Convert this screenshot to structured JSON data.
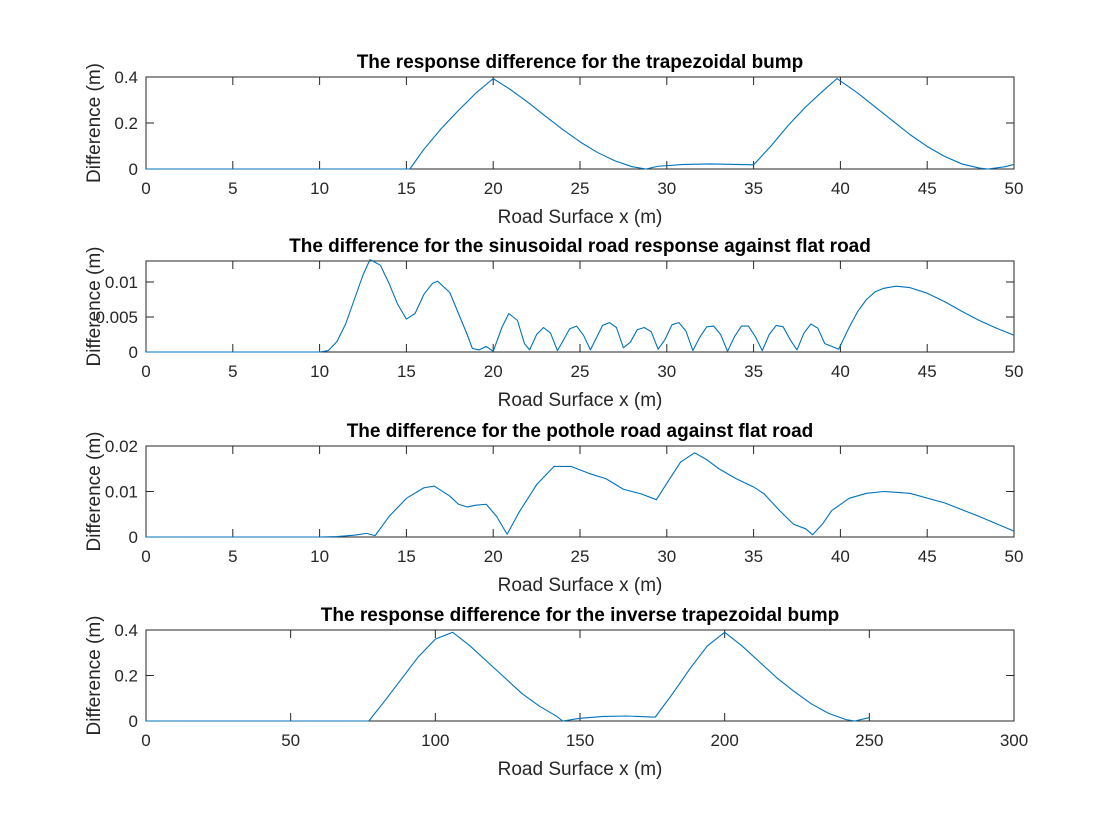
{
  "figure": {
    "background": "#ffffff",
    "line_color": "#0072bd"
  },
  "chart_data": [
    {
      "type": "line",
      "title": "The response difference for the trapezoidal bump",
      "xlabel": "Road Surface x (m)",
      "ylabel": "Difference (m)",
      "xlim": [
        0,
        50
      ],
      "ylim": [
        0,
        0.4
      ],
      "xticks": [
        "0",
        "5",
        "10",
        "15",
        "20",
        "25",
        "30",
        "35",
        "40",
        "45",
        "50"
      ],
      "xtick_values": [
        0,
        5,
        10,
        15,
        20,
        25,
        30,
        35,
        40,
        45,
        50
      ],
      "yticks": [
        "0",
        "0.2",
        "0.4"
      ],
      "ytick_values": [
        0,
        0.2,
        0.4
      ],
      "grid": false,
      "x": [
        0,
        15.2,
        16,
        17,
        18,
        19,
        20,
        21,
        22,
        23,
        24,
        25,
        26,
        27,
        28,
        28.8,
        29.5,
        31,
        32.5,
        34,
        35,
        36,
        37,
        38,
        39,
        39.8,
        41,
        42,
        43,
        44,
        45,
        46,
        47,
        48,
        48.5,
        49.5,
        50
      ],
      "y": [
        0,
        0,
        0.085,
        0.175,
        0.255,
        0.33,
        0.393,
        0.345,
        0.29,
        0.23,
        0.172,
        0.118,
        0.072,
        0.036,
        0.01,
        0.0,
        0.012,
        0.02,
        0.022,
        0.02,
        0.018,
        0.1,
        0.19,
        0.27,
        0.34,
        0.393,
        0.33,
        0.27,
        0.21,
        0.15,
        0.098,
        0.055,
        0.022,
        0.004,
        0.0,
        0.01,
        0.02
      ]
    },
    {
      "type": "line",
      "title": "The difference for the sinusoidal road response against flat road",
      "xlabel": "Road Surface x (m)",
      "ylabel": "Difference (m)",
      "xlim": [
        0,
        50
      ],
      "ylim": [
        0,
        0.013
      ],
      "xticks": [
        "0",
        "5",
        "10",
        "15",
        "20",
        "25",
        "30",
        "35",
        "40",
        "45",
        "50"
      ],
      "xtick_values": [
        0,
        5,
        10,
        15,
        20,
        25,
        30,
        35,
        40,
        45,
        50
      ],
      "yticks": [
        "0",
        "0.005",
        "0.01"
      ],
      "ytick_values": [
        0,
        0.005,
        0.01
      ],
      "grid": false,
      "x": [
        0,
        10,
        10.5,
        11,
        11.5,
        12,
        12.5,
        12.9,
        13.5,
        14,
        14.5,
        15,
        15.5,
        16,
        16.5,
        16.8,
        17.5,
        18,
        18.5,
        18.8,
        19.2,
        19.6,
        20,
        20.5,
        20.9,
        21.4,
        21.8,
        22.1,
        22.5,
        22.9,
        23.3,
        23.7,
        24,
        24.4,
        24.8,
        25.2,
        25.6,
        25.9,
        26.3,
        26.7,
        27.1,
        27.5,
        27.9,
        28.3,
        28.7,
        29.1,
        29.5,
        29.9,
        30.3,
        30.7,
        31.1,
        31.5,
        31.9,
        32.3,
        32.7,
        33.1,
        33.5,
        33.9,
        34.3,
        34.7,
        35.1,
        35.5,
        35.9,
        36.3,
        36.7,
        37.1,
        37.5,
        37.9,
        38.3,
        38.7,
        39.1,
        39.5,
        39.9,
        40.5,
        41,
        41.5,
        42,
        42.5,
        43.2,
        44,
        45,
        46,
        47,
        48,
        49,
        50
      ],
      "y": [
        0,
        0,
        0.0002,
        0.0015,
        0.004,
        0.0075,
        0.011,
        0.0132,
        0.0124,
        0.0098,
        0.0068,
        0.0047,
        0.0055,
        0.0082,
        0.0098,
        0.0101,
        0.0085,
        0.0055,
        0.0025,
        0.0005,
        0.0003,
        0.0008,
        0.0001,
        0.0035,
        0.0055,
        0.0045,
        0.0012,
        0.0003,
        0.0025,
        0.0035,
        0.0027,
        0.0002,
        0.0015,
        0.0033,
        0.0037,
        0.0024,
        0.0003,
        0.0018,
        0.0038,
        0.0042,
        0.0035,
        0.0006,
        0.0014,
        0.0032,
        0.0035,
        0.0029,
        0.0004,
        0.0018,
        0.0039,
        0.0042,
        0.003,
        0.0002,
        0.0021,
        0.0036,
        0.0037,
        0.0025,
        0.0001,
        0.0022,
        0.0037,
        0.0037,
        0.0022,
        0.0002,
        0.0025,
        0.0038,
        0.0036,
        0.0018,
        0.0003,
        0.0027,
        0.004,
        0.0034,
        0.0012,
        0.0008,
        0.0004,
        0.0035,
        0.0058,
        0.0075,
        0.0086,
        0.0091,
        0.0094,
        0.0092,
        0.0084,
        0.0072,
        0.0058,
        0.0045,
        0.0034,
        0.0024
      ]
    },
    {
      "type": "line",
      "title": "The difference for the pothole road against flat road",
      "xlabel": "Road Surface x (m)",
      "ylabel": "Difference (m)",
      "xlim": [
        0,
        50
      ],
      "ylim": [
        0,
        0.02
      ],
      "xticks": [
        "0",
        "5",
        "10",
        "15",
        "20",
        "25",
        "30",
        "35",
        "40",
        "45",
        "50"
      ],
      "xtick_values": [
        0,
        5,
        10,
        15,
        20,
        25,
        30,
        35,
        40,
        45,
        50
      ],
      "yticks": [
        "0",
        "0.01",
        "0.02"
      ],
      "ytick_values": [
        0,
        0.01,
        0.02
      ],
      "grid": false,
      "x": [
        0,
        10,
        11,
        12,
        12.7,
        13.2,
        14,
        15,
        16,
        16.6,
        17.5,
        18,
        18.5,
        19,
        19.6,
        20.2,
        20.8,
        21.5,
        22.5,
        23.5,
        24.5,
        25.5,
        26.5,
        27.5,
        28.5,
        29.4,
        30,
        30.8,
        31.6,
        32.3,
        33,
        34,
        35,
        35.6,
        36.5,
        37.3,
        38,
        38.4,
        39,
        39.5,
        40.5,
        41.5,
        42.5,
        44,
        46,
        48,
        50
      ],
      "y": [
        0,
        0,
        0.0001,
        0.0004,
        0.0008,
        0.0003,
        0.0045,
        0.0085,
        0.0108,
        0.0112,
        0.009,
        0.0072,
        0.0066,
        0.007,
        0.0072,
        0.0045,
        0.0006,
        0.0055,
        0.0115,
        0.0155,
        0.0155,
        0.014,
        0.0128,
        0.0105,
        0.0095,
        0.0082,
        0.0118,
        0.0165,
        0.0185,
        0.017,
        0.015,
        0.0128,
        0.011,
        0.0095,
        0.0058,
        0.0028,
        0.0018,
        0.0005,
        0.003,
        0.0058,
        0.0085,
        0.0096,
        0.01,
        0.0096,
        0.0075,
        0.0045,
        0.0013
      ]
    },
    {
      "type": "line",
      "title": "The response difference for the inverse trapezoidal bump",
      "xlabel": "Road Surface x (m)",
      "ylabel": "Difference (m)",
      "xlim": [
        0,
        300
      ],
      "ylim": [
        0,
        0.4
      ],
      "xticks": [
        "0",
        "50",
        "100",
        "150",
        "200",
        "250",
        "300"
      ],
      "xtick_values": [
        0,
        50,
        100,
        150,
        200,
        250,
        300
      ],
      "yticks": [
        "0",
        "0.2",
        "0.4"
      ],
      "ytick_values": [
        0,
        0.2,
        0.4
      ],
      "grid": false,
      "x": [
        0,
        77,
        82,
        88,
        94,
        100,
        106,
        112,
        118,
        124,
        130,
        136,
        142,
        144,
        150,
        158,
        166,
        174,
        176,
        182,
        188,
        194,
        200,
        206,
        212,
        218,
        224,
        230,
        236,
        242,
        245,
        250
      ],
      "y": [
        0,
        0,
        0.08,
        0.18,
        0.28,
        0.36,
        0.39,
        0.33,
        0.26,
        0.19,
        0.12,
        0.065,
        0.02,
        0.0,
        0.012,
        0.02,
        0.022,
        0.018,
        0.017,
        0.12,
        0.23,
        0.33,
        0.39,
        0.33,
        0.26,
        0.19,
        0.13,
        0.075,
        0.033,
        0.006,
        0.0,
        0.015
      ]
    }
  ]
}
